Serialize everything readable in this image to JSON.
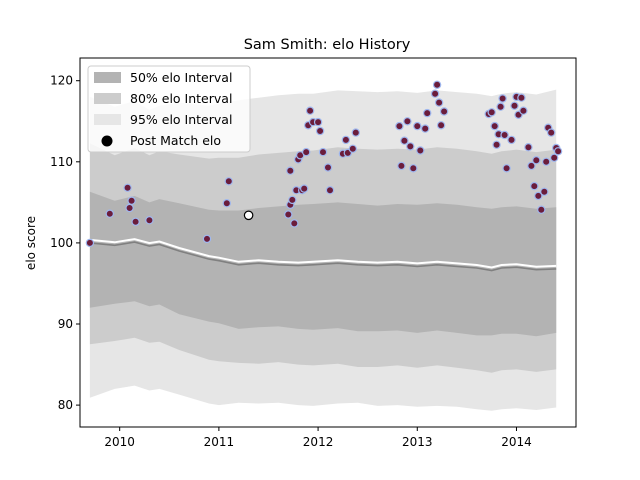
{
  "chart_data": {
    "type": "line",
    "title": "Sam Smith: elo History",
    "xlabel": "",
    "ylabel": "elo score",
    "xlim": [
      2009.6,
      2014.6
    ],
    "ylim": [
      77.3,
      122.8
    ],
    "x_ticks": [
      2010,
      2011,
      2012,
      2013,
      2014
    ],
    "x_tick_labels": [
      "2010",
      "2011",
      "2012",
      "2013",
      "2014"
    ],
    "y_ticks": [
      80,
      90,
      100,
      110,
      120
    ],
    "y_tick_labels": [
      "80",
      "90",
      "100",
      "110",
      "120"
    ],
    "grid": false,
    "legend_position": "top-left",
    "legend": [
      {
        "label": "50% elo Interval",
        "kind": "band",
        "color": "#b3b3b3"
      },
      {
        "label": "80% elo Interval",
        "kind": "band",
        "color": "#cccccc"
      },
      {
        "label": "95% elo Interval",
        "kind": "band",
        "color": "#e6e6e6"
      },
      {
        "label": "Post Match elo",
        "kind": "marker",
        "color": "#000000"
      }
    ],
    "x": [
      2009.7,
      2009.95,
      2010.15,
      2010.3,
      2010.4,
      2010.6,
      2010.9,
      2011.0,
      2011.2,
      2011.4,
      2011.6,
      2011.8,
      2011.95,
      2012.2,
      2012.4,
      2012.6,
      2012.8,
      2013.0,
      2013.2,
      2013.4,
      2013.6,
      2013.75,
      2013.85,
      2014.0,
      2014.2,
      2014.4
    ],
    "median": [
      100,
      99.7,
      100.1,
      99.6,
      99.8,
      99.0,
      98.0,
      97.8,
      97.3,
      97.5,
      97.3,
      97.2,
      97.3,
      97.5,
      97.3,
      97.2,
      97.3,
      97.1,
      97.3,
      97.1,
      96.9,
      96.6,
      96.9,
      97.0,
      96.7,
      96.8
    ],
    "series": [
      {
        "name": "50% elo Interval",
        "lower": [
          92.0,
          92.5,
          92.8,
          92.2,
          92.4,
          91.2,
          90.3,
          90.1,
          89.4,
          89.6,
          89.7,
          89.4,
          89.3,
          89.5,
          89.1,
          89.1,
          89.2,
          88.9,
          89.2,
          88.9,
          88.6,
          88.6,
          88.8,
          88.8,
          88.5,
          88.9
        ],
        "upper": [
          106.3,
          105.2,
          105.8,
          105.0,
          105.4,
          104.9,
          104.1,
          104.0,
          104.0,
          104.3,
          104.5,
          104.7,
          104.8,
          105.0,
          104.8,
          104.6,
          104.8,
          104.7,
          104.9,
          104.7,
          104.4,
          104.2,
          104.4,
          104.5,
          104.2,
          104.4
        ]
      },
      {
        "name": "80% elo Interval",
        "lower": [
          87.5,
          87.9,
          88.3,
          87.7,
          87.8,
          86.8,
          85.6,
          85.4,
          85.2,
          85.1,
          85.3,
          85.0,
          84.9,
          85.1,
          84.7,
          84.7,
          84.9,
          84.6,
          84.9,
          84.6,
          84.3,
          84.0,
          84.3,
          84.4,
          84.1,
          84.4
        ],
        "upper": [
          112.3,
          110.8,
          111.7,
          110.8,
          111.3,
          110.9,
          110.4,
          110.5,
          110.5,
          110.9,
          111.1,
          111.3,
          111.4,
          111.8,
          111.6,
          111.5,
          111.6,
          111.5,
          111.8,
          111.6,
          111.3,
          111.0,
          111.3,
          111.5,
          111.2,
          111.5
        ]
      },
      {
        "name": "95% elo Interval",
        "lower": [
          80.9,
          82.0,
          82.4,
          81.8,
          82.0,
          81.3,
          80.2,
          80.0,
          80.3,
          80.2,
          80.3,
          80.0,
          79.9,
          80.2,
          80.3,
          79.9,
          80.0,
          79.8,
          79.9,
          79.8,
          79.5,
          79.3,
          79.5,
          79.6,
          79.4,
          79.7
        ],
        "upper": [
          118.0,
          116.8,
          117.5,
          116.4,
          116.9,
          117.3,
          116.9,
          117.2,
          117.6,
          117.9,
          118.2,
          118.4,
          118.4,
          118.8,
          118.7,
          118.6,
          118.7,
          118.5,
          118.8,
          118.6,
          118.4,
          118.1,
          118.4,
          118.6,
          118.3,
          118.9
        ]
      }
    ],
    "post_match_points": [
      [
        2009.7,
        100.0
      ],
      [
        2009.9,
        103.6
      ],
      [
        2010.08,
        106.8
      ],
      [
        2010.1,
        104.3
      ],
      [
        2010.12,
        105.2
      ],
      [
        2010.16,
        102.6
      ],
      [
        2010.3,
        102.8
      ],
      [
        2010.88,
        100.5
      ],
      [
        2011.08,
        104.9
      ],
      [
        2011.1,
        107.6
      ],
      [
        2011.7,
        103.5
      ],
      [
        2011.72,
        104.7
      ],
      [
        2011.74,
        105.3
      ],
      [
        2011.76,
        102.4
      ],
      [
        2011.78,
        106.5
      ],
      [
        2011.8,
        110.3
      ],
      [
        2011.82,
        110.8
      ],
      [
        2011.84,
        106.5
      ],
      [
        2011.86,
        106.7
      ],
      [
        2011.88,
        111.2
      ],
      [
        2011.9,
        114.5
      ],
      [
        2011.92,
        116.3
      ],
      [
        2011.95,
        114.9
      ],
      [
        2012.0,
        114.9
      ],
      [
        2012.02,
        113.8
      ],
      [
        2012.05,
        111.2
      ],
      [
        2012.1,
        109.3
      ],
      [
        2012.12,
        106.5
      ],
      [
        2012.25,
        111.0
      ],
      [
        2012.28,
        112.7
      ],
      [
        2012.3,
        111.1
      ],
      [
        2012.35,
        111.6
      ],
      [
        2012.38,
        113.6
      ],
      [
        2011.72,
        108.9
      ],
      [
        2012.82,
        114.4
      ],
      [
        2012.84,
        109.5
      ],
      [
        2012.87,
        112.6
      ],
      [
        2012.9,
        115.0
      ],
      [
        2012.93,
        111.9
      ],
      [
        2012.96,
        109.2
      ],
      [
        2013.0,
        114.4
      ],
      [
        2013.03,
        111.4
      ],
      [
        2013.08,
        114.1
      ],
      [
        2013.1,
        116.0
      ],
      [
        2013.18,
        118.4
      ],
      [
        2013.2,
        119.5
      ],
      [
        2013.22,
        117.3
      ],
      [
        2013.24,
        114.5
      ],
      [
        2013.27,
        116.2
      ],
      [
        2013.72,
        115.9
      ],
      [
        2013.75,
        116.1
      ],
      [
        2013.78,
        114.4
      ],
      [
        2013.8,
        112.1
      ],
      [
        2013.82,
        113.4
      ],
      [
        2013.84,
        116.8
      ],
      [
        2013.86,
        117.8
      ],
      [
        2013.88,
        113.3
      ],
      [
        2013.9,
        109.2
      ],
      [
        2013.95,
        112.7
      ],
      [
        2013.98,
        116.9
      ],
      [
        2014.0,
        118.0
      ],
      [
        2014.02,
        115.8
      ],
      [
        2014.05,
        117.9
      ],
      [
        2014.07,
        116.3
      ],
      [
        2014.12,
        111.8
      ],
      [
        2014.15,
        109.5
      ],
      [
        2014.18,
        107.0
      ],
      [
        2014.2,
        110.2
      ],
      [
        2014.22,
        105.8
      ],
      [
        2014.25,
        104.1
      ],
      [
        2014.28,
        106.3
      ],
      [
        2014.3,
        110.0
      ],
      [
        2014.32,
        114.2
      ],
      [
        2014.35,
        113.6
      ],
      [
        2014.38,
        110.5
      ],
      [
        2014.4,
        111.7
      ],
      [
        2014.42,
        111.3
      ]
    ],
    "highlight_point": {
      "label": "Post Match elo",
      "x": 2011.3,
      "y": 103.4
    },
    "colors": {
      "band50": "#b3b3b3",
      "band80": "#cccccc",
      "band95": "#e6e6e6",
      "median_line": "#808080",
      "median_halo": "#ffffff",
      "point_fill": "#6b1d3c",
      "point_edge": "#9fb7ee",
      "highlight_fill": "#ffffff",
      "highlight_edge": "#000000"
    }
  }
}
